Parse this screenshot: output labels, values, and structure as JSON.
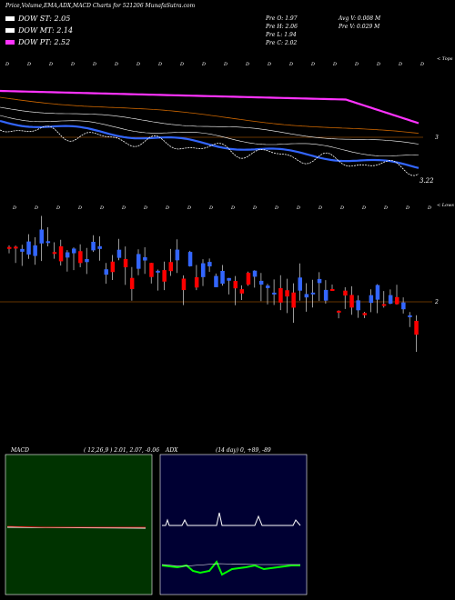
{
  "header": {
    "title": "Price,Volume,EMA,ADX,MACD Charts for 521206  MunafaSutra.com"
  },
  "legend": [
    {
      "label": "DOW ST: 2.05",
      "color": "#ffffff"
    },
    {
      "label": "DOW MT: 2.14",
      "color": "#ffffff"
    },
    {
      "label": "DOW PT: 2.52",
      "color": "#ff33ff"
    }
  ],
  "stats": {
    "prev_open": "Pre   O: 1.97",
    "prev_high": "Pre   H: 2.06",
    "prev_low": "Pre   L: 1.94",
    "prev_close": "Pre   C: 2.02",
    "avg_volume": "Avg V: 0.008 M",
    "prev_volume": "Pre   V: 0.029 M"
  },
  "side_labels": {
    "tops": "< Tops",
    "lows": "< Lows"
  },
  "colors": {
    "bull": "#3366ff",
    "bear": "#ff0000",
    "ema_short": "#ffffff",
    "ema_long": "#ff33ff",
    "price_ref": "#cc6600",
    "macd_bg": "#003300",
    "adx_bg": "#000033",
    "adx_plus": "#00ff00"
  },
  "chart_data": [
    {
      "type": "line",
      "panel": "price-ema",
      "y_tick_labels": [
        "3",
        "3.22"
      ],
      "series": [
        {
          "values": [
            4.1,
            4.08,
            4.05,
            4.02,
            4.0,
            3.98,
            3.97,
            3.96,
            3.95,
            3.95,
            3.94,
            3.93,
            3.92,
            3.9,
            3.88,
            3.86,
            3.84,
            3.82,
            3.8,
            3.78,
            3.7,
            3.62,
            3.55,
            3.5
          ]
        },
        {
          "values": [
            3.6,
            3.55,
            3.52,
            3.5,
            3.48,
            3.47,
            3.47,
            3.46,
            3.46,
            3.45,
            3.45,
            3.44,
            3.43,
            3.42,
            3.41,
            3.4,
            3.38,
            3.36,
            3.34,
            3.32,
            3.3,
            3.27,
            3.24,
            3.22
          ]
        },
        {
          "values": [
            3.4,
            3.3,
            3.2,
            3.35,
            3.5,
            3.45,
            3.55,
            3.6,
            3.5,
            3.45,
            3.5,
            3.55,
            3.5,
            3.4,
            3.35,
            3.3,
            3.35,
            3.3,
            3.25,
            3.2,
            3.25,
            3.15,
            3.1,
            3.22
          ]
        }
      ]
    },
    {
      "type": "bar",
      "panel": "candlestick",
      "price_reference_label": "2"
    },
    {
      "type": "line",
      "panel": "macd",
      "title": "MACD",
      "params": "( 12,26,9 ) 2.01, 2.07, -0.06"
    },
    {
      "type": "line",
      "panel": "adx",
      "title": "ADX",
      "params": "(14  day) 0, +89, -89"
    }
  ]
}
